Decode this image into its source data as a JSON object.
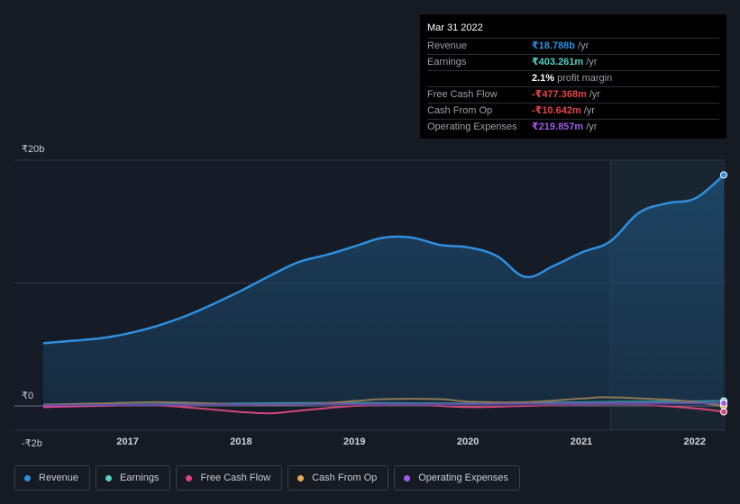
{
  "tooltip": {
    "date": "Mar 31 2022",
    "rows": [
      {
        "label": "Revenue",
        "value": "₹18.788b",
        "unit": "/yr",
        "color": "#2e8fe0"
      },
      {
        "label": "Earnings",
        "value": "₹403.261m",
        "unit": "/yr",
        "color": "#4fd1c5"
      },
      {
        "label": "",
        "value": "2.1%",
        "unit": "profit margin",
        "color": "#ffffff"
      },
      {
        "label": "Free Cash Flow",
        "value": "-₹477.368m",
        "unit": "/yr",
        "color": "#e8454a"
      },
      {
        "label": "Cash From Op",
        "value": "-₹10.642m",
        "unit": "/yr",
        "color": "#e8454a"
      },
      {
        "label": "Operating Expenses",
        "value": "₹219.857m",
        "unit": "/yr",
        "color": "#a15be8"
      }
    ]
  },
  "legend": [
    {
      "label": "Revenue",
      "color": "#2e8fe0"
    },
    {
      "label": "Earnings",
      "color": "#4fd1c5"
    },
    {
      "label": "Free Cash Flow",
      "color": "#d6457e"
    },
    {
      "label": "Cash From Op",
      "color": "#e8a850"
    },
    {
      "label": "Operating Expenses",
      "color": "#a15be8"
    }
  ],
  "chart_data": {
    "type": "area",
    "title": "",
    "xlabel": "",
    "ylabel": "",
    "ylim": [
      -2,
      20
    ],
    "y_ticks": [
      {
        "value": 20,
        "label": "₹20b"
      },
      {
        "value": 0,
        "label": "₹0"
      },
      {
        "value": -2,
        "label": "-₹2b"
      }
    ],
    "x_ticks": [
      {
        "value": 2017,
        "label": "2017"
      },
      {
        "value": 2018,
        "label": "2018"
      },
      {
        "value": 2019,
        "label": "2019"
      },
      {
        "value": 2020,
        "label": "2020"
      },
      {
        "value": 2021,
        "label": "2021"
      },
      {
        "value": 2022,
        "label": "2022"
      }
    ],
    "xlim": [
      2016.25,
      2022.25
    ],
    "highlight_from": 2021.25,
    "series": [
      {
        "name": "Revenue",
        "color": "#2e8fe0",
        "fill": true,
        "x": [
          2016.25,
          2016.5,
          2016.75,
          2017.0,
          2017.25,
          2017.5,
          2017.75,
          2018.0,
          2018.25,
          2018.5,
          2018.75,
          2019.0,
          2019.25,
          2019.5,
          2019.75,
          2020.0,
          2020.25,
          2020.5,
          2020.75,
          2021.0,
          2021.25,
          2021.5,
          2021.75,
          2022.0,
          2022.25
        ],
        "values": [
          5.1,
          5.3,
          5.5,
          5.9,
          6.5,
          7.3,
          8.3,
          9.4,
          10.6,
          11.7,
          12.3,
          13.0,
          13.7,
          13.7,
          13.1,
          12.9,
          12.2,
          10.5,
          11.4,
          12.5,
          13.4,
          15.7,
          16.5,
          16.9,
          18.8
        ]
      },
      {
        "name": "Earnings",
        "color": "#4fd1c5",
        "fill": false,
        "x": [
          2016.25,
          2017.0,
          2018.0,
          2019.0,
          2020.0,
          2021.0,
          2021.5,
          2022.0,
          2022.25
        ],
        "values": [
          0.05,
          0.1,
          0.2,
          0.25,
          0.2,
          0.3,
          0.35,
          0.38,
          0.4
        ]
      },
      {
        "name": "Free Cash Flow",
        "color": "#d6457e",
        "fill": false,
        "x": [
          2016.25,
          2016.75,
          2017.25,
          2017.75,
          2018.0,
          2018.25,
          2018.5,
          2019.0,
          2019.5,
          2020.0,
          2020.5,
          2021.0,
          2021.5,
          2022.0,
          2022.25
        ],
        "values": [
          -0.1,
          0.0,
          0.05,
          -0.3,
          -0.5,
          -0.6,
          -0.4,
          0.0,
          0.1,
          -0.1,
          0.0,
          0.1,
          0.1,
          -0.2,
          -0.48
        ]
      },
      {
        "name": "Cash From Op",
        "color": "#e8a850",
        "fill": false,
        "x": [
          2016.25,
          2016.75,
          2017.25,
          2017.75,
          2018.0,
          2018.5,
          2019.0,
          2019.25,
          2019.75,
          2020.0,
          2020.5,
          2021.0,
          2021.25,
          2021.75,
          2022.0,
          2022.25
        ],
        "values": [
          0.1,
          0.2,
          0.3,
          0.2,
          0.1,
          0.1,
          0.4,
          0.55,
          0.55,
          0.35,
          0.3,
          0.6,
          0.7,
          0.5,
          0.3,
          -0.01
        ]
      },
      {
        "name": "Operating Expenses",
        "color": "#a15be8",
        "fill": false,
        "x": [
          2016.25,
          2017.0,
          2018.0,
          2019.0,
          2020.0,
          2021.0,
          2022.0,
          2022.25
        ],
        "values": [
          0.05,
          0.08,
          0.1,
          0.15,
          0.15,
          0.2,
          0.22,
          0.22
        ]
      }
    ]
  }
}
